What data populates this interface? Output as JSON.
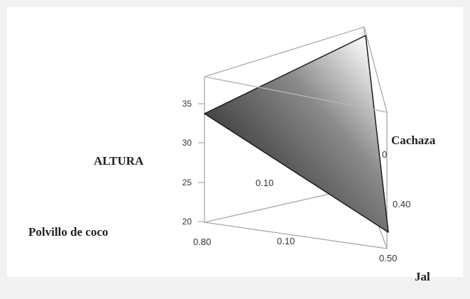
{
  "chart_data": {
    "type": "3d-mixture-surface",
    "title": "",
    "response": "ALTURA",
    "components": [
      "Polvillo de coco",
      "Cachaza",
      "Jal"
    ],
    "z_ticks": [
      "20",
      "25",
      "30",
      "35"
    ],
    "component_tick_labels": {
      "polvillo_axis": [
        "0.80",
        "0.10",
        "0.50"
      ],
      "jal_side": [
        "0",
        "0.40"
      ],
      "center": "0.10"
    },
    "surface_vertices": [
      {
        "label": "Polvillo de coco corner",
        "altura": 33
      },
      {
        "label": "top vertex",
        "altura": 39.5
      },
      {
        "label": "Jal corner",
        "altura": 20.5
      }
    ],
    "surface_shading": [
      "#ffffff",
      "#8a8a8a",
      "#2a2a2a"
    ]
  }
}
